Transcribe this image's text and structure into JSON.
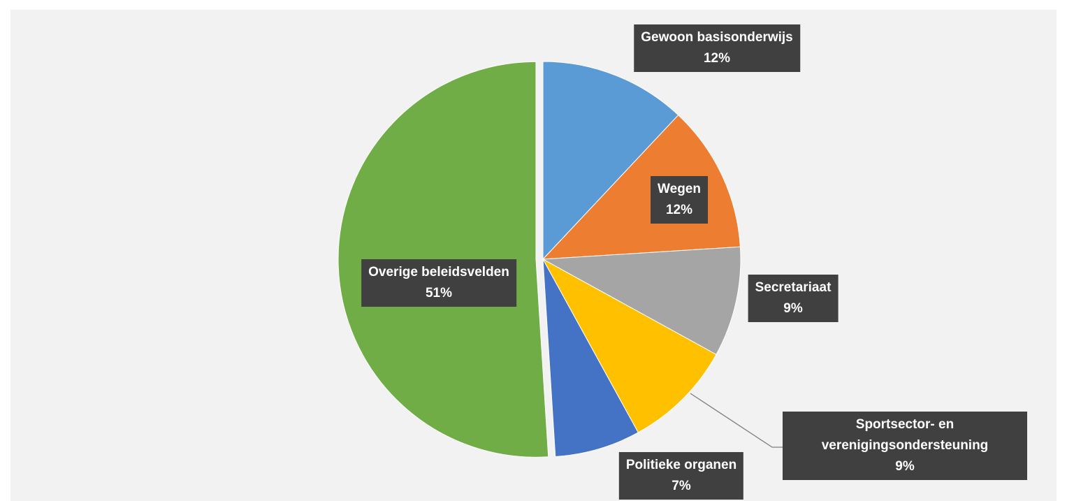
{
  "chart_data": {
    "type": "pie",
    "categories": [
      "Gewoon basisonderwijs",
      "Wegen",
      "Secretariaat",
      "Sportsector- en verenigingsondersteuning",
      "Politieke organen",
      "Overige beleidsvelden"
    ],
    "values": [
      12,
      12,
      9,
      9,
      7,
      51
    ],
    "value_labels": [
      "12%",
      "12%",
      "9%",
      "9%",
      "7%",
      "51%"
    ],
    "colors": [
      "#5b9bd5",
      "#ed7d31",
      "#a5a5a5",
      "#ffc000",
      "#4472c4",
      "#70ad47"
    ]
  }
}
